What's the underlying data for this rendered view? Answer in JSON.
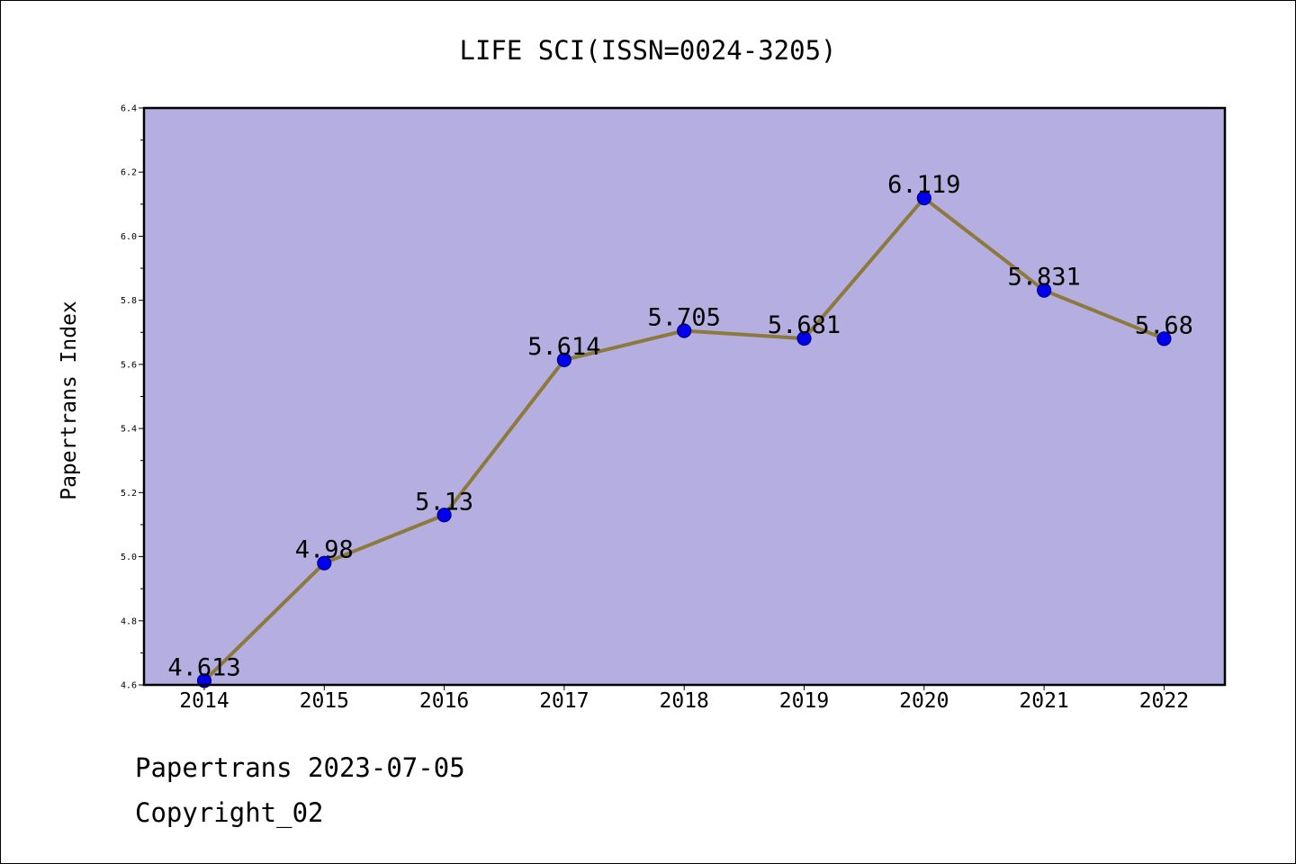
{
  "chart_data": {
    "type": "line",
    "title": "LIFE SCI(ISSN=0024-3205)",
    "xlabel": "",
    "ylabel": "Papertrans Index",
    "categories": [
      "2014",
      "2015",
      "2016",
      "2017",
      "2018",
      "2019",
      "2020",
      "2021",
      "2022"
    ],
    "series": [
      {
        "values": [
          4.613,
          4.98,
          5.13,
          5.614,
          5.705,
          5.681,
          6.119,
          5.831,
          5.68
        ],
        "labels": [
          "4.613",
          "4.98",
          "5.13",
          "5.614",
          "5.705",
          "5.681",
          "6.119",
          "5.831",
          "5.68"
        ]
      }
    ],
    "ylim": [
      4.6,
      6.4
    ],
    "yticks": [
      4.6,
      4.8,
      5.0,
      5.2,
      5.4,
      5.6,
      5.8,
      6.0,
      6.2,
      6.4
    ],
    "ytick_labels": [
      "4.6",
      "4.8",
      "5.0",
      "5.2",
      "5.4",
      "5.6",
      "5.8",
      "6.0",
      "6.2",
      "6.4"
    ],
    "grid": false,
    "legend": "none",
    "colors": {
      "plot_background": "#b5aee0",
      "line": "#8c7a3c",
      "marker": "#0000ee",
      "marker_edge": "#000080"
    }
  },
  "footer": {
    "line1": "Papertrans 2023-07-05",
    "line2": "Copyright_02"
  }
}
